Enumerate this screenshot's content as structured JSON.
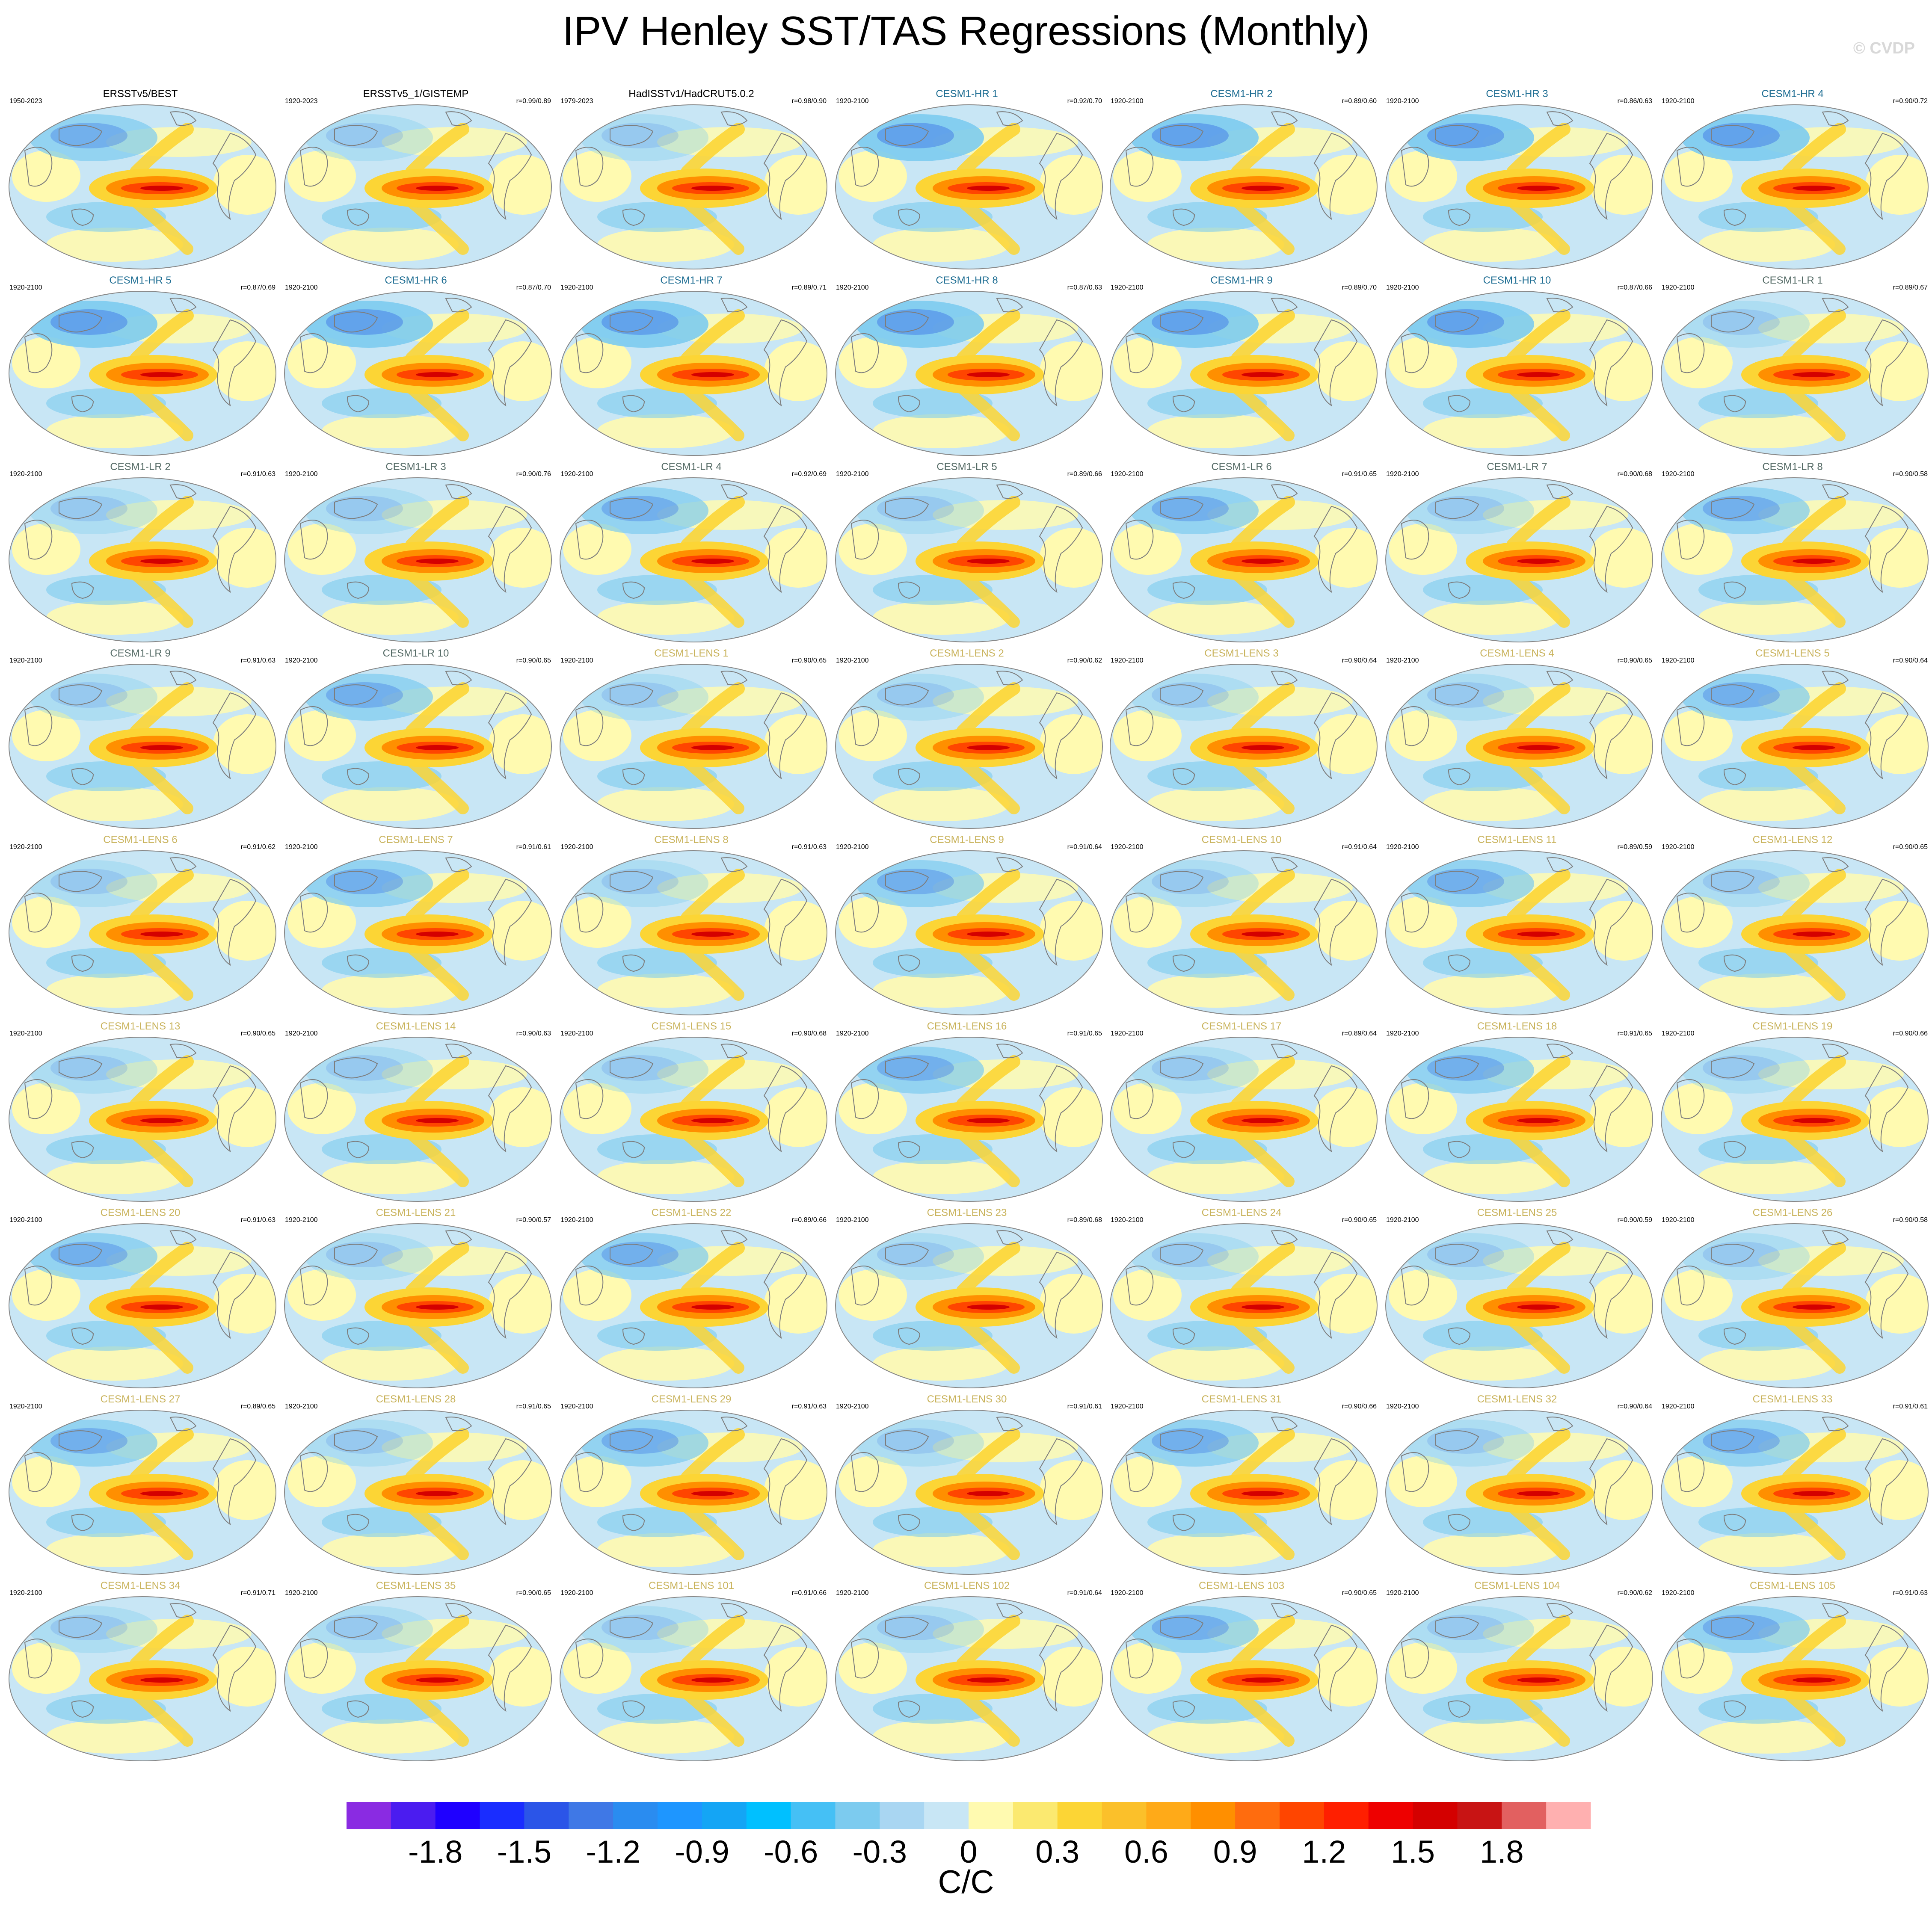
{
  "title": "IPV Henley SST/TAS Regressions (Monthly)",
  "watermark": "© CVDP",
  "colors": {
    "obs_title": "#000000",
    "hr_title": "#1f6e93",
    "lr_title": "#556b66",
    "lens_title": "#c9b35c"
  },
  "chart_data": {
    "type": "heatmap",
    "projection": "global map (Robinson-like), Pacific-centered",
    "grid": "9 rows x 7 columns",
    "panels": [
      {
        "title": "ERSSTv5/BEST",
        "period": "1950-2023",
        "r": "",
        "group": "obs"
      },
      {
        "title": "ERSSTv5_1/GISTEMP",
        "period": "1920-2023",
        "r": "r=0.99/0.89",
        "group": "obs"
      },
      {
        "title": "HadISSTv1/HadCRUT5.0.2",
        "period": "1979-2023",
        "r": "r=0.98/0.90",
        "group": "obs"
      },
      {
        "title": "CESM1-HR 1",
        "period": "1920-2100",
        "r": "r=0.92/0.70",
        "group": "hr"
      },
      {
        "title": "CESM1-HR 2",
        "period": "1920-2100",
        "r": "r=0.89/0.60",
        "group": "hr"
      },
      {
        "title": "CESM1-HR 3",
        "period": "1920-2100",
        "r": "r=0.86/0.63",
        "group": "hr"
      },
      {
        "title": "CESM1-HR 4",
        "period": "1920-2100",
        "r": "r=0.90/0.72",
        "group": "hr"
      },
      {
        "title": "CESM1-HR 5",
        "period": "1920-2100",
        "r": "r=0.87/0.69",
        "group": "hr"
      },
      {
        "title": "CESM1-HR 6",
        "period": "1920-2100",
        "r": "r=0.87/0.70",
        "group": "hr"
      },
      {
        "title": "CESM1-HR 7",
        "period": "1920-2100",
        "r": "r=0.89/0.71",
        "group": "hr"
      },
      {
        "title": "CESM1-HR 8",
        "period": "1920-2100",
        "r": "r=0.87/0.63",
        "group": "hr"
      },
      {
        "title": "CESM1-HR 9",
        "period": "1920-2100",
        "r": "r=0.89/0.70",
        "group": "hr"
      },
      {
        "title": "CESM1-HR 10",
        "period": "1920-2100",
        "r": "r=0.87/0.66",
        "group": "hr"
      },
      {
        "title": "CESM1-LR 1",
        "period": "1920-2100",
        "r": "r=0.89/0.67",
        "group": "lr"
      },
      {
        "title": "CESM1-LR 2",
        "period": "1920-2100",
        "r": "r=0.91/0.63",
        "group": "lr"
      },
      {
        "title": "CESM1-LR 3",
        "period": "1920-2100",
        "r": "r=0.90/0.76",
        "group": "lr"
      },
      {
        "title": "CESM1-LR 4",
        "period": "1920-2100",
        "r": "r=0.92/0.69",
        "group": "lr"
      },
      {
        "title": "CESM1-LR 5",
        "period": "1920-2100",
        "r": "r=0.89/0.66",
        "group": "lr"
      },
      {
        "title": "CESM1-LR 6",
        "period": "1920-2100",
        "r": "r=0.91/0.65",
        "group": "lr"
      },
      {
        "title": "CESM1-LR 7",
        "period": "1920-2100",
        "r": "r=0.90/0.68",
        "group": "lr"
      },
      {
        "title": "CESM1-LR 8",
        "period": "1920-2100",
        "r": "r=0.90/0.58",
        "group": "lr"
      },
      {
        "title": "CESM1-LR 9",
        "period": "1920-2100",
        "r": "r=0.91/0.63",
        "group": "lr"
      },
      {
        "title": "CESM1-LR 10",
        "period": "1920-2100",
        "r": "r=0.90/0.65",
        "group": "lr"
      },
      {
        "title": "CESM1-LENS 1",
        "period": "1920-2100",
        "r": "r=0.90/0.65",
        "group": "lens"
      },
      {
        "title": "CESM1-LENS 2",
        "period": "1920-2100",
        "r": "r=0.90/0.62",
        "group": "lens"
      },
      {
        "title": "CESM1-LENS 3",
        "period": "1920-2100",
        "r": "r=0.90/0.64",
        "group": "lens"
      },
      {
        "title": "CESM1-LENS 4",
        "period": "1920-2100",
        "r": "r=0.90/0.65",
        "group": "lens"
      },
      {
        "title": "CESM1-LENS 5",
        "period": "1920-2100",
        "r": "r=0.90/0.64",
        "group": "lens"
      },
      {
        "title": "CESM1-LENS 6",
        "period": "1920-2100",
        "r": "r=0.91/0.62",
        "group": "lens"
      },
      {
        "title": "CESM1-LENS 7",
        "period": "1920-2100",
        "r": "r=0.91/0.61",
        "group": "lens"
      },
      {
        "title": "CESM1-LENS 8",
        "period": "1920-2100",
        "r": "r=0.91/0.63",
        "group": "lens"
      },
      {
        "title": "CESM1-LENS 9",
        "period": "1920-2100",
        "r": "r=0.91/0.64",
        "group": "lens"
      },
      {
        "title": "CESM1-LENS 10",
        "period": "1920-2100",
        "r": "r=0.91/0.64",
        "group": "lens"
      },
      {
        "title": "CESM1-LENS 11",
        "period": "1920-2100",
        "r": "r=0.89/0.59",
        "group": "lens"
      },
      {
        "title": "CESM1-LENS 12",
        "period": "1920-2100",
        "r": "r=0.90/0.65",
        "group": "lens"
      },
      {
        "title": "CESM1-LENS 13",
        "period": "1920-2100",
        "r": "r=0.90/0.65",
        "group": "lens"
      },
      {
        "title": "CESM1-LENS 14",
        "period": "1920-2100",
        "r": "r=0.90/0.63",
        "group": "lens"
      },
      {
        "title": "CESM1-LENS 15",
        "period": "1920-2100",
        "r": "r=0.90/0.68",
        "group": "lens"
      },
      {
        "title": "CESM1-LENS 16",
        "period": "1920-2100",
        "r": "r=0.91/0.65",
        "group": "lens"
      },
      {
        "title": "CESM1-LENS 17",
        "period": "1920-2100",
        "r": "r=0.89/0.64",
        "group": "lens"
      },
      {
        "title": "CESM1-LENS 18",
        "period": "1920-2100",
        "r": "r=0.91/0.65",
        "group": "lens"
      },
      {
        "title": "CESM1-LENS 19",
        "period": "1920-2100",
        "r": "r=0.90/0.66",
        "group": "lens"
      },
      {
        "title": "CESM1-LENS 20",
        "period": "1920-2100",
        "r": "r=0.91/0.63",
        "group": "lens"
      },
      {
        "title": "CESM1-LENS 21",
        "period": "1920-2100",
        "r": "r=0.90/0.57",
        "group": "lens"
      },
      {
        "title": "CESM1-LENS 22",
        "period": "1920-2100",
        "r": "r=0.89/0.66",
        "group": "lens"
      },
      {
        "title": "CESM1-LENS 23",
        "period": "1920-2100",
        "r": "r=0.89/0.68",
        "group": "lens"
      },
      {
        "title": "CESM1-LENS 24",
        "period": "1920-2100",
        "r": "r=0.90/0.65",
        "group": "lens"
      },
      {
        "title": "CESM1-LENS 25",
        "period": "1920-2100",
        "r": "r=0.90/0.59",
        "group": "lens"
      },
      {
        "title": "CESM1-LENS 26",
        "period": "1920-2100",
        "r": "r=0.90/0.58",
        "group": "lens"
      },
      {
        "title": "CESM1-LENS 27",
        "period": "1920-2100",
        "r": "r=0.89/0.65",
        "group": "lens"
      },
      {
        "title": "CESM1-LENS 28",
        "period": "1920-2100",
        "r": "r=0.91/0.65",
        "group": "lens"
      },
      {
        "title": "CESM1-LENS 29",
        "period": "1920-2100",
        "r": "r=0.91/0.63",
        "group": "lens"
      },
      {
        "title": "CESM1-LENS 30",
        "period": "1920-2100",
        "r": "r=0.91/0.61",
        "group": "lens"
      },
      {
        "title": "CESM1-LENS 31",
        "period": "1920-2100",
        "r": "r=0.90/0.66",
        "group": "lens"
      },
      {
        "title": "CESM1-LENS 32",
        "period": "1920-2100",
        "r": "r=0.90/0.64",
        "group": "lens"
      },
      {
        "title": "CESM1-LENS 33",
        "period": "1920-2100",
        "r": "r=0.91/0.61",
        "group": "lens"
      },
      {
        "title": "CESM1-LENS 34",
        "period": "1920-2100",
        "r": "r=0.91/0.71",
        "group": "lens"
      },
      {
        "title": "CESM1-LENS 35",
        "period": "1920-2100",
        "r": "r=0.90/0.65",
        "group": "lens"
      },
      {
        "title": "CESM1-LENS 101",
        "period": "1920-2100",
        "r": "r=0.91/0.66",
        "group": "lens"
      },
      {
        "title": "CESM1-LENS 102",
        "period": "1920-2100",
        "r": "r=0.91/0.64",
        "group": "lens"
      },
      {
        "title": "CESM1-LENS 103",
        "period": "1920-2100",
        "r": "r=0.90/0.65",
        "group": "lens"
      },
      {
        "title": "CESM1-LENS 104",
        "period": "1920-2100",
        "r": "r=0.90/0.62",
        "group": "lens"
      },
      {
        "title": "CESM1-LENS 105",
        "period": "1920-2100",
        "r": "r=0.91/0.63",
        "group": "lens"
      }
    ],
    "colorbar": {
      "units": "C/C",
      "tick_labels": [
        "-1.8",
        "-1.5",
        "-1.2",
        "-0.9",
        "-0.6",
        "-0.3",
        "0",
        "0.3",
        "0.6",
        "0.9",
        "1.2",
        "1.5",
        "1.8"
      ],
      "colors": [
        "#8a2be2",
        "#4b1cf0",
        "#1f00ff",
        "#1a2dff",
        "#2b55e8",
        "#3f78e6",
        "#2a8cf0",
        "#1e96ff",
        "#14a5f5",
        "#00c0ff",
        "#45c0f5",
        "#7ccbef",
        "#a9d6f2",
        "#c8e6f5",
        "#fffab0",
        "#fbe970",
        "#fcd535",
        "#fbc02a",
        "#ffaa18",
        "#ff8f00",
        "#ff6c0e",
        "#ff4500",
        "#ff1f00",
        "#ee0000",
        "#d40000",
        "#c81414",
        "#e26060",
        "#ffb0b0"
      ]
    }
  }
}
